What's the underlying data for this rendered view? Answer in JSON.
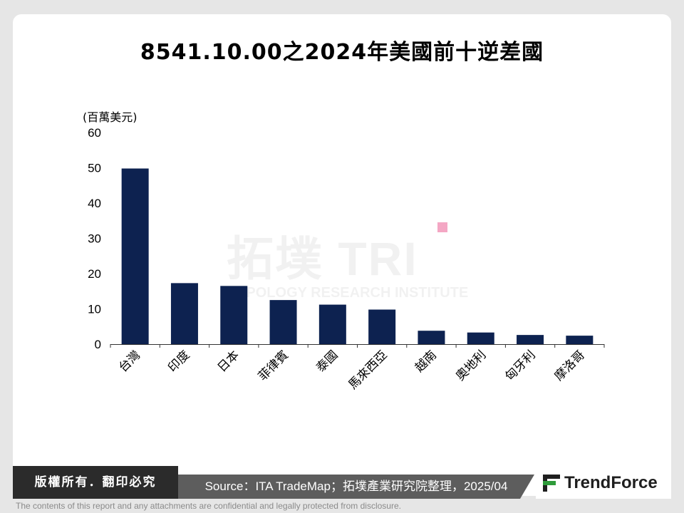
{
  "title": "8541.10.00之2024年美國前十逆差國",
  "chart_data": {
    "type": "bar",
    "unit_label": "(百萬美元)",
    "categories": [
      "台灣",
      "印度",
      "日本",
      "菲律賓",
      "泰國",
      "馬來西亞",
      "越南",
      "奧地利",
      "匈牙利",
      "摩洛哥"
    ],
    "values": [
      49.8,
      17.3,
      16.5,
      12.5,
      11.2,
      9.8,
      3.8,
      3.3,
      2.6,
      2.4
    ],
    "yticks": [
      0,
      10,
      20,
      30,
      40,
      50,
      60
    ],
    "ylim": [
      0,
      60
    ],
    "bar_color": "#0d2250",
    "grid": false
  },
  "watermark": {
    "main": "拓墣 TRI",
    "sub": "TOPOLOGY RESEARCH INSTITUTE"
  },
  "footer": {
    "copyright": "版權所有．翻印必究",
    "source": "Source：ITA TradeMap；拓墣產業研究院整理，2025/04",
    "logo": "TrendForce",
    "disclaimer": "The contents of this report and any attachments are confidential and legally protected from disclosure."
  }
}
